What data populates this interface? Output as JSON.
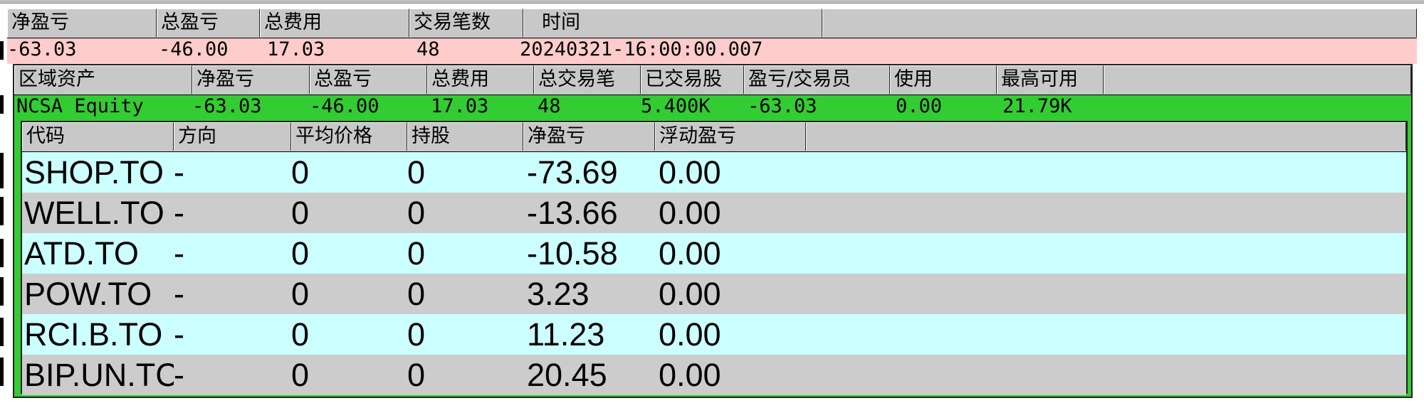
{
  "summary": {
    "headers": [
      "净盈亏",
      "总盈亏",
      "总费用",
      "交易笔数",
      "时间"
    ],
    "values": [
      "-63.03",
      "-46.00",
      "17.03",
      "48",
      "20240321-16:00:00.007"
    ],
    "bg_color": "#ffcccc"
  },
  "region": {
    "headers": [
      "区域资产",
      "净盈亏",
      "总盈亏",
      "总费用",
      "总交易笔",
      "已交易股",
      "盈亏/交易员",
      "使用",
      "最高可用"
    ],
    "values": [
      "NCSA Equity",
      "-63.03",
      "-46.00",
      "17.03",
      "48",
      "5.400K",
      "-63.03",
      "0.00",
      "21.79K"
    ],
    "bg_color": "#33cc33"
  },
  "positions": {
    "headers": [
      "代码",
      "方向",
      "平均价格",
      "持股",
      "净盈亏",
      "浮动盈亏"
    ],
    "rows": [
      {
        "symbol": "SHOP.TO",
        "side": "-",
        "avg_price": "0",
        "shares": "0",
        "net_pnl": "-73.69",
        "float_pnl": "0.00"
      },
      {
        "symbol": "WELL.TO",
        "side": "-",
        "avg_price": "0",
        "shares": "0",
        "net_pnl": "-13.66",
        "float_pnl": "0.00"
      },
      {
        "symbol": "ATD.TO",
        "side": "-",
        "avg_price": "0",
        "shares": "0",
        "net_pnl": "-10.58",
        "float_pnl": "0.00"
      },
      {
        "symbol": "POW.TO",
        "side": "-",
        "avg_price": "0",
        "shares": "0",
        "net_pnl": "3.23",
        "float_pnl": "0.00"
      },
      {
        "symbol": "RCI.B.TO",
        "side": "-",
        "avg_price": "0",
        "shares": "0",
        "net_pnl": "11.23",
        "float_pnl": "0.00"
      },
      {
        "symbol": "BIP.UN.TC",
        "side": "-",
        "avg_price": "0",
        "shares": "0",
        "net_pnl": "20.45",
        "float_pnl": "0.00"
      }
    ],
    "row_colors": [
      "#ccffff",
      "#cccccc"
    ]
  }
}
